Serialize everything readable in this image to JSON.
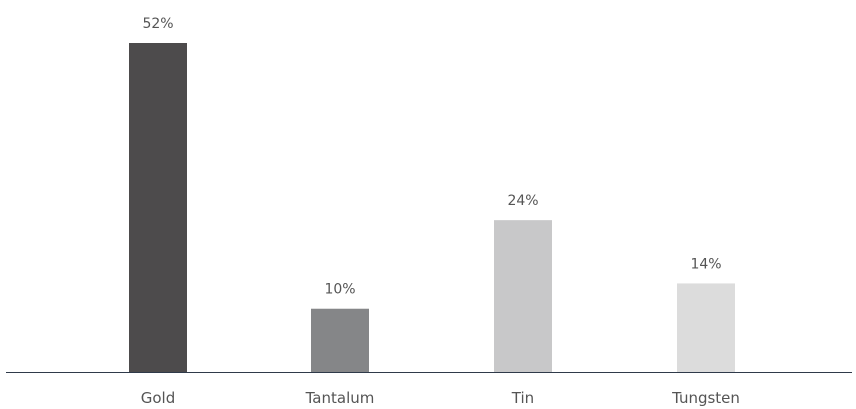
{
  "chart_data": {
    "type": "bar",
    "categories": [
      "Gold",
      "Tantalum",
      "Tin",
      "Tungsten"
    ],
    "values": [
      52,
      10,
      24,
      14
    ],
    "value_labels": [
      "52%",
      "10%",
      "24%",
      "14%"
    ],
    "colors": [
      "#4d4b4c",
      "#858688",
      "#c8c8c9",
      "#dcdcdc"
    ],
    "axis_color": "#2f3a4a",
    "unit": "%",
    "ylim": [
      0,
      52
    ],
    "grid": false,
    "legend": "none",
    "title": "",
    "xlabel": "",
    "ylabel": ""
  }
}
